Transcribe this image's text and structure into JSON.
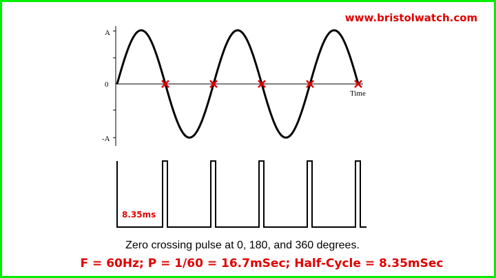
{
  "header": {
    "website": "www.bristolwatch.com"
  },
  "waveform": {
    "axis_labels": {
      "top": "A",
      "zero": "0",
      "bottom": "-A",
      "time": "Time"
    }
  },
  "pulse": {
    "label": "8.35ms"
  },
  "caption": "Zero crossing pulse at 0, 180, and 360 degrees.",
  "formula": "F = 60Hz; P = 1/60 = 16.7mSec; Half-Cycle = 8.35mSec"
}
